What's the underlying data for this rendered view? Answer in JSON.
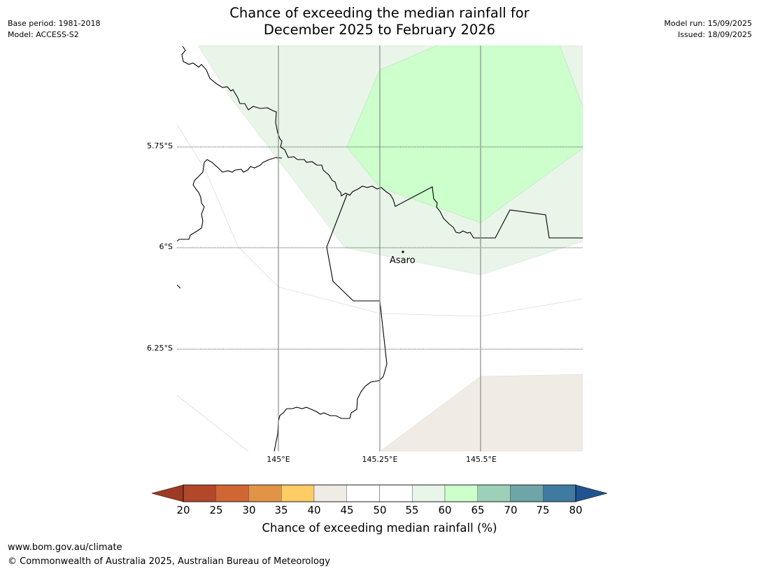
{
  "header": {
    "title_line1": "Chance of exceeding the median rainfall for",
    "title_line2": "December 2025 to February 2026",
    "base_period": "Base period: 1981-2018",
    "model": "Model: ACCESS-S2",
    "model_run": "Model run: 15/09/2025",
    "issued": "Issued: 18/09/2025"
  },
  "map": {
    "lat_labels": [
      "5.75°S",
      "6°S",
      "6.25°S"
    ],
    "lon_labels": [
      "145°E",
      "145.25°E",
      "145.5°E"
    ],
    "place": "Asaro",
    "colors": {
      "c35_40": "#ffcc66",
      "c40_45": "#f0ebe5",
      "c55_60": "#e8f5e8",
      "c60_65": "#ccffcc"
    }
  },
  "colorbar": {
    "ticks": [
      "20",
      "25",
      "30",
      "35",
      "40",
      "45",
      "50",
      "55",
      "60",
      "65",
      "70",
      "75",
      "80"
    ],
    "label": "Chance of exceeding median rainfall (%)",
    "colors": [
      "#9c3a24",
      "#b3472a",
      "#d06633",
      "#e29446",
      "#ffcc66",
      "#f0ebe5",
      "#ffffff",
      "#ffffff",
      "#e8f5e8",
      "#ccffcc",
      "#9dd0b8",
      "#6ea5a8",
      "#3f7aa0",
      "#1e5590"
    ]
  },
  "footer": {
    "url": "www.bom.gov.au/climate",
    "copyright": "© Commonwealth of Australia 2025, Australian Bureau of Meteorology"
  }
}
